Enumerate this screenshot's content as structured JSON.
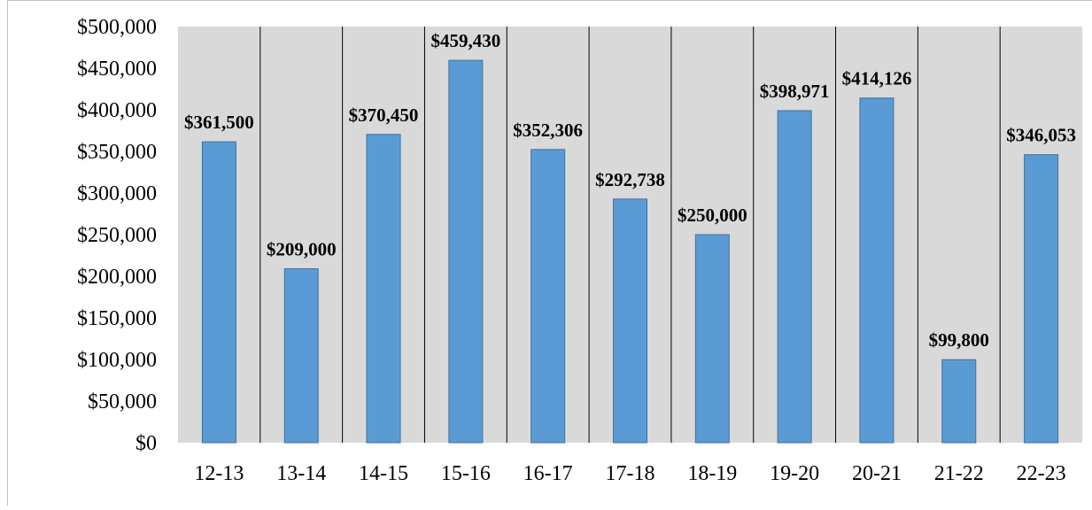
{
  "chart_data": {
    "type": "bar",
    "title": "",
    "xlabel": "",
    "ylabel": "",
    "categories": [
      "12-13",
      "13-14",
      "14-15",
      "15-16",
      "16-17",
      "17-18",
      "18-19",
      "19-20",
      "20-21",
      "21-22",
      "22-23"
    ],
    "values": [
      361500,
      209000,
      370450,
      459430,
      352306,
      292738,
      250000,
      398971,
      414126,
      99800,
      346053
    ],
    "data_labels": [
      "$361,500",
      "$209,000",
      "$370,450",
      "$459,430",
      "$352,306",
      "$292,738",
      "$250,000",
      "$398,971",
      "$414,126",
      "$99,800",
      "$346,053"
    ],
    "ylim": [
      0,
      500000
    ],
    "y_ticks": [
      0,
      50000,
      100000,
      150000,
      200000,
      250000,
      300000,
      350000,
      400000,
      450000,
      500000
    ],
    "y_tick_labels": [
      "$0",
      "$50,000",
      "$100,000",
      "$150,000",
      "$200,000",
      "$250,000",
      "$300,000",
      "$350,000",
      "$400,000",
      "$450,000",
      "$500,000"
    ],
    "grid": "vertical category separators",
    "legend": "none",
    "colors": {
      "bar_fill": "#5b9bd5",
      "bar_stroke": "#41719c",
      "plot_background": "#d9d9d9",
      "separator": "#000000"
    }
  }
}
